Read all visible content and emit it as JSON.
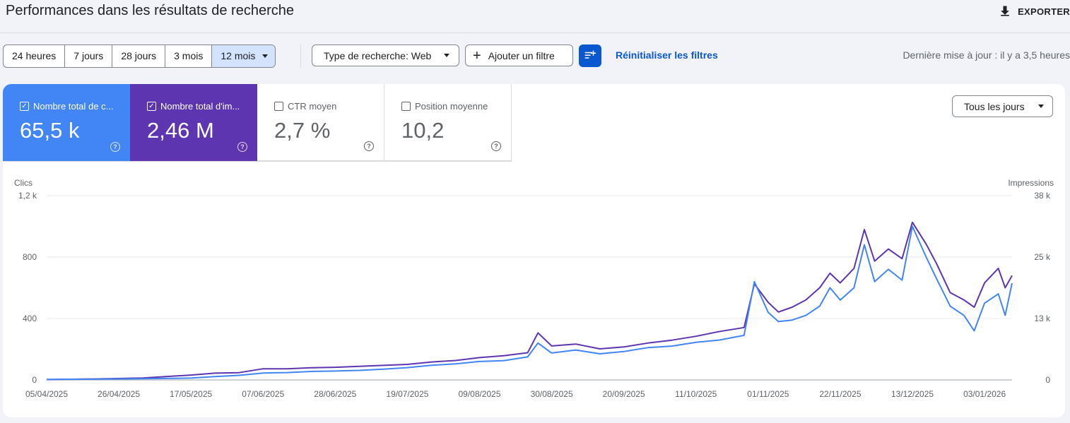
{
  "header": {
    "title": "Performances dans les résultats de recherche",
    "export_label": "EXPORTER"
  },
  "toolbar": {
    "ranges": [
      "24 heures",
      "7 jours",
      "28 jours",
      "3 mois",
      "12 mois"
    ],
    "active_range": "12 mois",
    "search_type": "Type de recherche: Web",
    "add_filter": "Ajouter un filtre",
    "reset_filters": "Réinitialiser les filtres",
    "last_update": "Dernière mise à jour : il y a 3,5 heures"
  },
  "metrics": [
    {
      "label": "Nombre total de c...",
      "value": "65,5 k",
      "checked": true,
      "color": "#4285f4"
    },
    {
      "label": "Nombre total d'im...",
      "value": "2,46 M",
      "checked": true,
      "color": "#5e35b1"
    },
    {
      "label": "CTR moyen",
      "value": "2,7 %",
      "checked": false
    },
    {
      "label": "Position moyenne",
      "value": "10,2",
      "checked": false
    }
  ],
  "granularity": "Tous les jours",
  "chart_data": {
    "type": "line",
    "left_axis": {
      "label": "Clics",
      "ticks": [
        "0",
        "400",
        "800",
        "1,2 k"
      ],
      "ylim": [
        0,
        1200
      ]
    },
    "right_axis": {
      "label": "Impressions",
      "ticks": [
        "0",
        "13 k",
        "25 k",
        "38 k"
      ],
      "ylim": [
        0,
        38000
      ]
    },
    "x_tick_labels": [
      "05/04/2025",
      "26/04/2025",
      "17/05/2025",
      "07/06/2025",
      "28/06/2025",
      "19/07/2025",
      "09/08/2025",
      "30/08/2025",
      "20/09/2025",
      "11/10/2025",
      "01/11/2025",
      "22/11/2025",
      "13/12/2025",
      "03/01/2026"
    ],
    "x_range": [
      "05/04/2025",
      "11/01/2026"
    ],
    "grid": true,
    "series": [
      {
        "axis": "left",
        "color": "#4285f4",
        "points": [
          [
            "05/04/2025",
            3
          ],
          [
            "19/04/2025",
            5
          ],
          [
            "03/05/2025",
            8
          ],
          [
            "17/05/2025",
            12
          ],
          [
            "24/05/2025",
            22
          ],
          [
            "31/05/2025",
            30
          ],
          [
            "07/06/2025",
            45
          ],
          [
            "14/06/2025",
            48
          ],
          [
            "21/06/2025",
            55
          ],
          [
            "28/06/2025",
            58
          ],
          [
            "05/07/2025",
            62
          ],
          [
            "12/07/2025",
            70
          ],
          [
            "19/07/2025",
            80
          ],
          [
            "26/07/2025",
            95
          ],
          [
            "02/08/2025",
            105
          ],
          [
            "09/08/2025",
            120
          ],
          [
            "16/08/2025",
            125
          ],
          [
            "23/08/2025",
            150
          ],
          [
            "26/08/2025",
            240
          ],
          [
            "30/08/2025",
            175
          ],
          [
            "06/09/2025",
            195
          ],
          [
            "13/09/2025",
            170
          ],
          [
            "20/09/2025",
            185
          ],
          [
            "27/09/2025",
            210
          ],
          [
            "04/10/2025",
            220
          ],
          [
            "11/10/2025",
            245
          ],
          [
            "18/10/2025",
            260
          ],
          [
            "25/10/2025",
            290
          ],
          [
            "28/10/2025",
            640
          ],
          [
            "01/11/2025",
            440
          ],
          [
            "04/11/2025",
            380
          ],
          [
            "08/11/2025",
            390
          ],
          [
            "12/11/2025",
            420
          ],
          [
            "16/11/2025",
            480
          ],
          [
            "19/11/2025",
            600
          ],
          [
            "22/11/2025",
            520
          ],
          [
            "26/11/2025",
            600
          ],
          [
            "29/11/2025",
            880
          ],
          [
            "02/12/2025",
            640
          ],
          [
            "06/12/2025",
            720
          ],
          [
            "10/12/2025",
            650
          ],
          [
            "13/12/2025",
            1000
          ],
          [
            "17/12/2025",
            800
          ],
          [
            "20/12/2025",
            660
          ],
          [
            "24/12/2025",
            480
          ],
          [
            "28/12/2025",
            420
          ],
          [
            "31/12/2025",
            320
          ],
          [
            "03/01/2026",
            500
          ],
          [
            "07/01/2026",
            560
          ],
          [
            "09/01/2026",
            420
          ],
          [
            "11/01/2026",
            630
          ]
        ]
      },
      {
        "axis": "right",
        "color": "#5e35b1",
        "points": [
          [
            "05/04/2025",
            80
          ],
          [
            "19/04/2025",
            200
          ],
          [
            "03/05/2025",
            400
          ],
          [
            "17/05/2025",
            1000
          ],
          [
            "24/05/2025",
            1400
          ],
          [
            "31/05/2025",
            1500
          ],
          [
            "07/06/2025",
            2300
          ],
          [
            "14/06/2025",
            2300
          ],
          [
            "21/06/2025",
            2500
          ],
          [
            "28/06/2025",
            2600
          ],
          [
            "05/07/2025",
            2800
          ],
          [
            "12/07/2025",
            3000
          ],
          [
            "19/07/2025",
            3200
          ],
          [
            "26/07/2025",
            3700
          ],
          [
            "02/08/2025",
            4000
          ],
          [
            "09/08/2025",
            4600
          ],
          [
            "16/08/2025",
            5000
          ],
          [
            "23/08/2025",
            5600
          ],
          [
            "26/08/2025",
            9700
          ],
          [
            "30/08/2025",
            7000
          ],
          [
            "06/09/2025",
            7400
          ],
          [
            "13/09/2025",
            6400
          ],
          [
            "20/09/2025",
            6800
          ],
          [
            "27/09/2025",
            7600
          ],
          [
            "04/10/2025",
            8200
          ],
          [
            "11/10/2025",
            9000
          ],
          [
            "18/10/2025",
            10000
          ],
          [
            "25/10/2025",
            10800
          ],
          [
            "28/10/2025",
            19800
          ],
          [
            "01/11/2025",
            16000
          ],
          [
            "04/11/2025",
            14000
          ],
          [
            "08/11/2025",
            15000
          ],
          [
            "12/11/2025",
            16500
          ],
          [
            "16/11/2025",
            19000
          ],
          [
            "19/11/2025",
            22000
          ],
          [
            "22/11/2025",
            20000
          ],
          [
            "26/11/2025",
            23000
          ],
          [
            "29/11/2025",
            31000
          ],
          [
            "02/12/2025",
            24500
          ],
          [
            "06/12/2025",
            27000
          ],
          [
            "10/12/2025",
            25000
          ],
          [
            "13/12/2025",
            32500
          ],
          [
            "17/12/2025",
            28000
          ],
          [
            "20/12/2025",
            24000
          ],
          [
            "24/12/2025",
            18000
          ],
          [
            "28/12/2025",
            16500
          ],
          [
            "31/12/2025",
            15000
          ],
          [
            "03/01/2026",
            20000
          ],
          [
            "07/01/2026",
            23000
          ],
          [
            "09/01/2026",
            19000
          ],
          [
            "11/01/2026",
            21500
          ]
        ]
      }
    ]
  },
  "colors": {
    "accent": "#0b57d0",
    "clicks": "#4285f4",
    "impressions": "#5e35b1"
  }
}
